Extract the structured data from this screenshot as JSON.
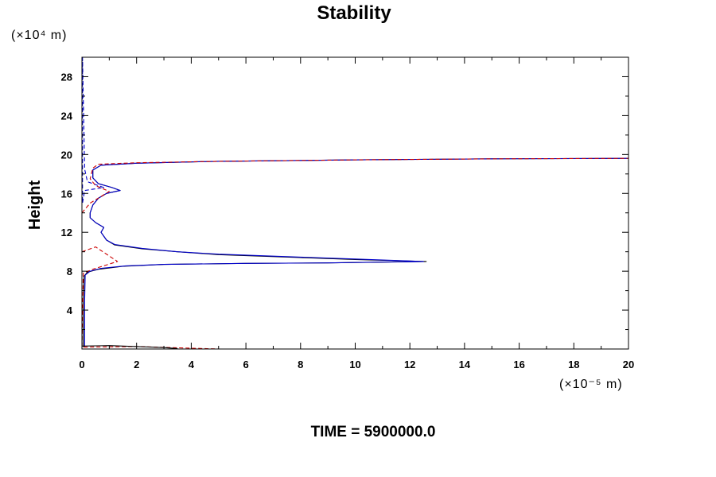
{
  "chart_data": {
    "type": "line",
    "title": "Stability",
    "ylabel": "Height",
    "xlabel": "",
    "y_unit": "(×10⁴ m)",
    "x_unit": "(×10⁻⁵ m)",
    "footer": "TIME = 5900000.0",
    "xlim": [
      0,
      20
    ],
    "ylim": [
      0,
      30
    ],
    "x_ticks": [
      0,
      2,
      4,
      6,
      8,
      10,
      12,
      14,
      16,
      18,
      20
    ],
    "y_ticks": [
      4,
      8,
      12,
      16,
      20,
      24,
      28
    ],
    "grid": false,
    "series": [
      {
        "color": "#000000",
        "dash": "solid",
        "points": [
          [
            0.05,
            0.2
          ],
          [
            0.05,
            5
          ],
          [
            0.08,
            7.5
          ],
          [
            0.2,
            7.9
          ],
          [
            0.6,
            8.2
          ],
          [
            1.5,
            8.5
          ],
          [
            3,
            8.7
          ],
          [
            6,
            8.8
          ],
          [
            9,
            8.85
          ],
          [
            12.6,
            9.0
          ],
          [
            10,
            9.2
          ],
          [
            8,
            9.4
          ],
          [
            5,
            9.7
          ],
          [
            3.5,
            10.0
          ],
          [
            2.2,
            10.3
          ],
          [
            1.2,
            10.7
          ],
          [
            0.9,
            11.2
          ],
          [
            0.7,
            12.0
          ],
          [
            0.8,
            12.5
          ],
          [
            0.5,
            13.0
          ],
          [
            0.3,
            13.5
          ],
          [
            0.3,
            14.0
          ],
          [
            0.4,
            14.8
          ],
          [
            0.6,
            15.5
          ],
          [
            0.9,
            16.0
          ],
          [
            1.4,
            16.3
          ],
          [
            1.1,
            16.6
          ],
          [
            0.6,
            17.0
          ],
          [
            0.4,
            17.6
          ],
          [
            0.4,
            18.4
          ],
          [
            0.7,
            18.9
          ],
          [
            2,
            19.1
          ],
          [
            5,
            19.3
          ],
          [
            10,
            19.45
          ],
          [
            15,
            19.55
          ],
          [
            20,
            19.6
          ]
        ]
      },
      {
        "color": "#0000cc",
        "dash": "solid",
        "points": [
          [
            0.1,
            0.2
          ],
          [
            0.1,
            5
          ],
          [
            0.12,
            7.6
          ],
          [
            0.3,
            8.0
          ],
          [
            0.7,
            8.3
          ],
          [
            1.6,
            8.55
          ],
          [
            3,
            8.7
          ],
          [
            6,
            8.8
          ],
          [
            9,
            8.85
          ],
          [
            12.5,
            9.0
          ],
          [
            10,
            9.25
          ],
          [
            8,
            9.45
          ],
          [
            5,
            9.75
          ],
          [
            3.5,
            10.0
          ],
          [
            2.2,
            10.35
          ],
          [
            1.2,
            10.75
          ],
          [
            0.9,
            11.2
          ],
          [
            0.7,
            12.0
          ],
          [
            0.8,
            12.5
          ],
          [
            0.5,
            13.0
          ],
          [
            0.3,
            13.5
          ],
          [
            0.3,
            14.0
          ],
          [
            0.4,
            14.8
          ],
          [
            0.6,
            15.5
          ],
          [
            0.9,
            16.0
          ],
          [
            1.4,
            16.3
          ],
          [
            1.1,
            16.6
          ],
          [
            0.6,
            17.0
          ],
          [
            0.4,
            17.6
          ],
          [
            0.4,
            18.4
          ],
          [
            0.7,
            18.9
          ],
          [
            2,
            19.1
          ],
          [
            5,
            19.3
          ],
          [
            10,
            19.45
          ],
          [
            15,
            19.55
          ],
          [
            20,
            19.6
          ]
        ]
      },
      {
        "color": "#0000cc",
        "dash": "dashed",
        "points": [
          [
            0.02,
            30
          ],
          [
            0.02,
            15
          ],
          [
            0.1,
            16.3
          ],
          [
            0.8,
            16.6
          ],
          [
            0.2,
            17.2
          ],
          [
            0.1,
            18.5
          ],
          [
            0.02,
            30
          ]
        ]
      },
      {
        "color": "#cc0000",
        "dash": "dashed",
        "points": [
          [
            0.0,
            10.0
          ],
          [
            0.5,
            10.5
          ],
          [
            1.3,
            9.0
          ],
          [
            0.4,
            8.2
          ],
          [
            0.05,
            7.8
          ],
          [
            0.0,
            0.2
          ],
          [
            2.0,
            0.25
          ],
          [
            5.0,
            0.0
          ]
        ]
      },
      {
        "color": "#cc0000",
        "dash": "dashed",
        "points": [
          [
            0.0,
            14.0
          ],
          [
            0.3,
            15.0
          ],
          [
            1.0,
            16.2
          ],
          [
            0.5,
            16.8
          ],
          [
            0.3,
            17.5
          ],
          [
            0.4,
            18.6
          ],
          [
            0.6,
            19.0
          ],
          [
            2,
            19.15
          ],
          [
            5,
            19.3
          ],
          [
            10,
            19.45
          ],
          [
            15,
            19.55
          ],
          [
            20,
            19.6
          ]
        ]
      },
      {
        "color": "#000000",
        "dash": "solid",
        "points": [
          [
            0.0,
            0.3
          ],
          [
            1.0,
            0.35
          ],
          [
            2.0,
            0.25
          ],
          [
            3.0,
            0.15
          ],
          [
            3.5,
            0.05
          ]
        ]
      }
    ]
  }
}
